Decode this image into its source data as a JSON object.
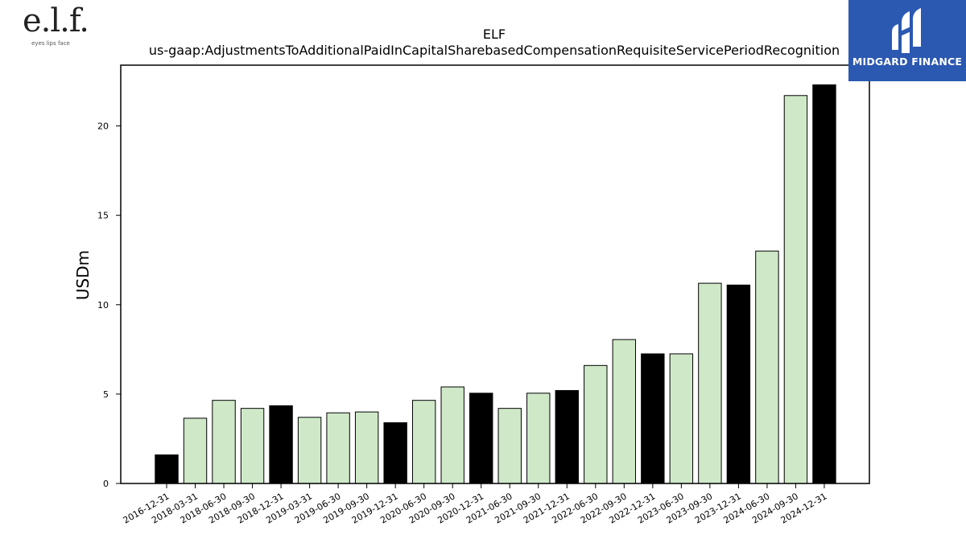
{
  "logos": {
    "company_logo": {
      "text": "e.l.f.",
      "tagline": "eyes lips face"
    },
    "publisher_logo": {
      "text": "MIDGARD FINANCE",
      "background": "#2b58b0"
    }
  },
  "chart_data": {
    "type": "bar",
    "title": "ELF",
    "subtitle": "us-gaap:AdjustmentsToAdditionalPaidInCapitalSharebasedCompensationRequisiteServicePeriodRecognition",
    "xlabel": "",
    "ylabel": "USDm",
    "ylim": [
      0,
      23.4
    ],
    "yticks": [
      0,
      5,
      10,
      15,
      20
    ],
    "grid": false,
    "categories": [
      "2016-12-31",
      "2018-03-31",
      "2018-06-30",
      "2018-09-30",
      "2018-12-31",
      "2019-03-31",
      "2019-06-30",
      "2019-09-30",
      "2019-12-31",
      "2020-06-30",
      "2020-09-30",
      "2020-12-31",
      "2021-06-30",
      "2021-09-30",
      "2021-12-31",
      "2022-06-30",
      "2022-09-30",
      "2022-12-31",
      "2023-06-30",
      "2023-09-30",
      "2023-12-31",
      "2024-06-30",
      "2024-09-30",
      "2024-12-31"
    ],
    "values": [
      1.6,
      3.65,
      4.65,
      4.2,
      4.35,
      3.7,
      3.95,
      4.0,
      3.4,
      4.65,
      5.4,
      5.05,
      4.2,
      5.05,
      5.2,
      6.6,
      8.05,
      7.25,
      7.25,
      11.2,
      11.1,
      13.0,
      21.7,
      22.3
    ],
    "bar_colors": [
      "#000000",
      "#cfe9c8",
      "#cfe9c8",
      "#cfe9c8",
      "#000000",
      "#cfe9c8",
      "#cfe9c8",
      "#cfe9c8",
      "#000000",
      "#cfe9c8",
      "#cfe9c8",
      "#000000",
      "#cfe9c8",
      "#cfe9c8",
      "#000000",
      "#cfe9c8",
      "#cfe9c8",
      "#000000",
      "#cfe9c8",
      "#cfe9c8",
      "#000000",
      "#cfe9c8",
      "#cfe9c8",
      "#000000"
    ],
    "colors": {
      "quarter_bar": "#cfe9c8",
      "year_end_bar": "#000000",
      "edge": "#000000"
    }
  }
}
